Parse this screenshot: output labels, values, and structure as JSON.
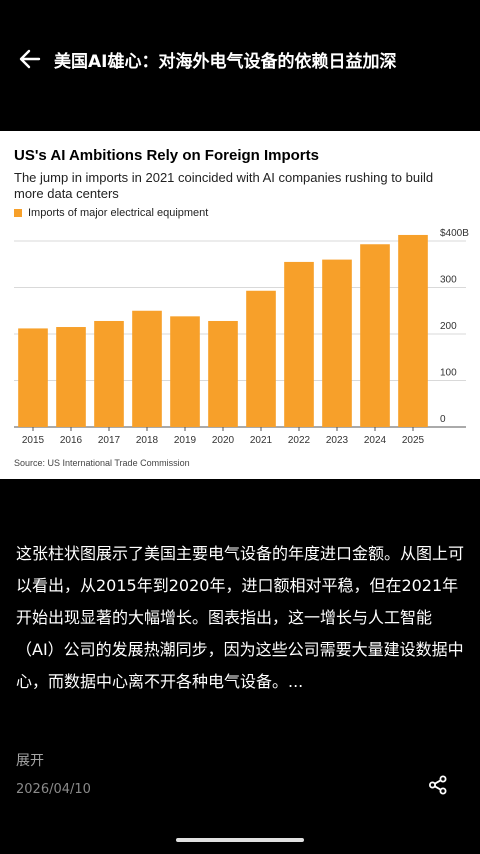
{
  "header": {
    "title": "美国AI雄心：对海外电气设备的依赖日益加深"
  },
  "chart_data": {
    "type": "bar",
    "title": "US's AI Ambitions Rely on Foreign Imports",
    "subtitle": "The jump in imports in 2021 coincided with AI companies rushing to build more data centers",
    "legend": [
      "Imports of major electrical equipment"
    ],
    "categories": [
      "2015",
      "2016",
      "2017",
      "2018",
      "2019",
      "2020",
      "2021",
      "2022",
      "2023",
      "2024",
      "2025"
    ],
    "series": [
      {
        "name": "Imports of major electrical equipment",
        "values": [
          212,
          215,
          228,
          250,
          238,
          228,
          293,
          355,
          360,
          393,
          413
        ]
      }
    ],
    "ylim": [
      0,
      400
    ],
    "yticks": [
      "$400B",
      "300",
      "200",
      "100",
      "0"
    ],
    "color": "#f7a02a",
    "source": "Source: US International Trade Commission"
  },
  "description": {
    "text": "这张柱状图展示了美国主要电气设备的年度进口金额。从图上可以看出，从2015年到2020年，进口额相对平稳，但在2021年开始出现显著的大幅增长。图表指出，这一增长与人工智能（AI）公司的发展热潮同步，因为这些公司需要大量建设数据中心，而数据中心离不开各种电气设备。...",
    "expand_label": "展开",
    "date": "2026/04/10"
  },
  "icons": {
    "back": "arrow-left-icon",
    "share": "share-icon"
  }
}
